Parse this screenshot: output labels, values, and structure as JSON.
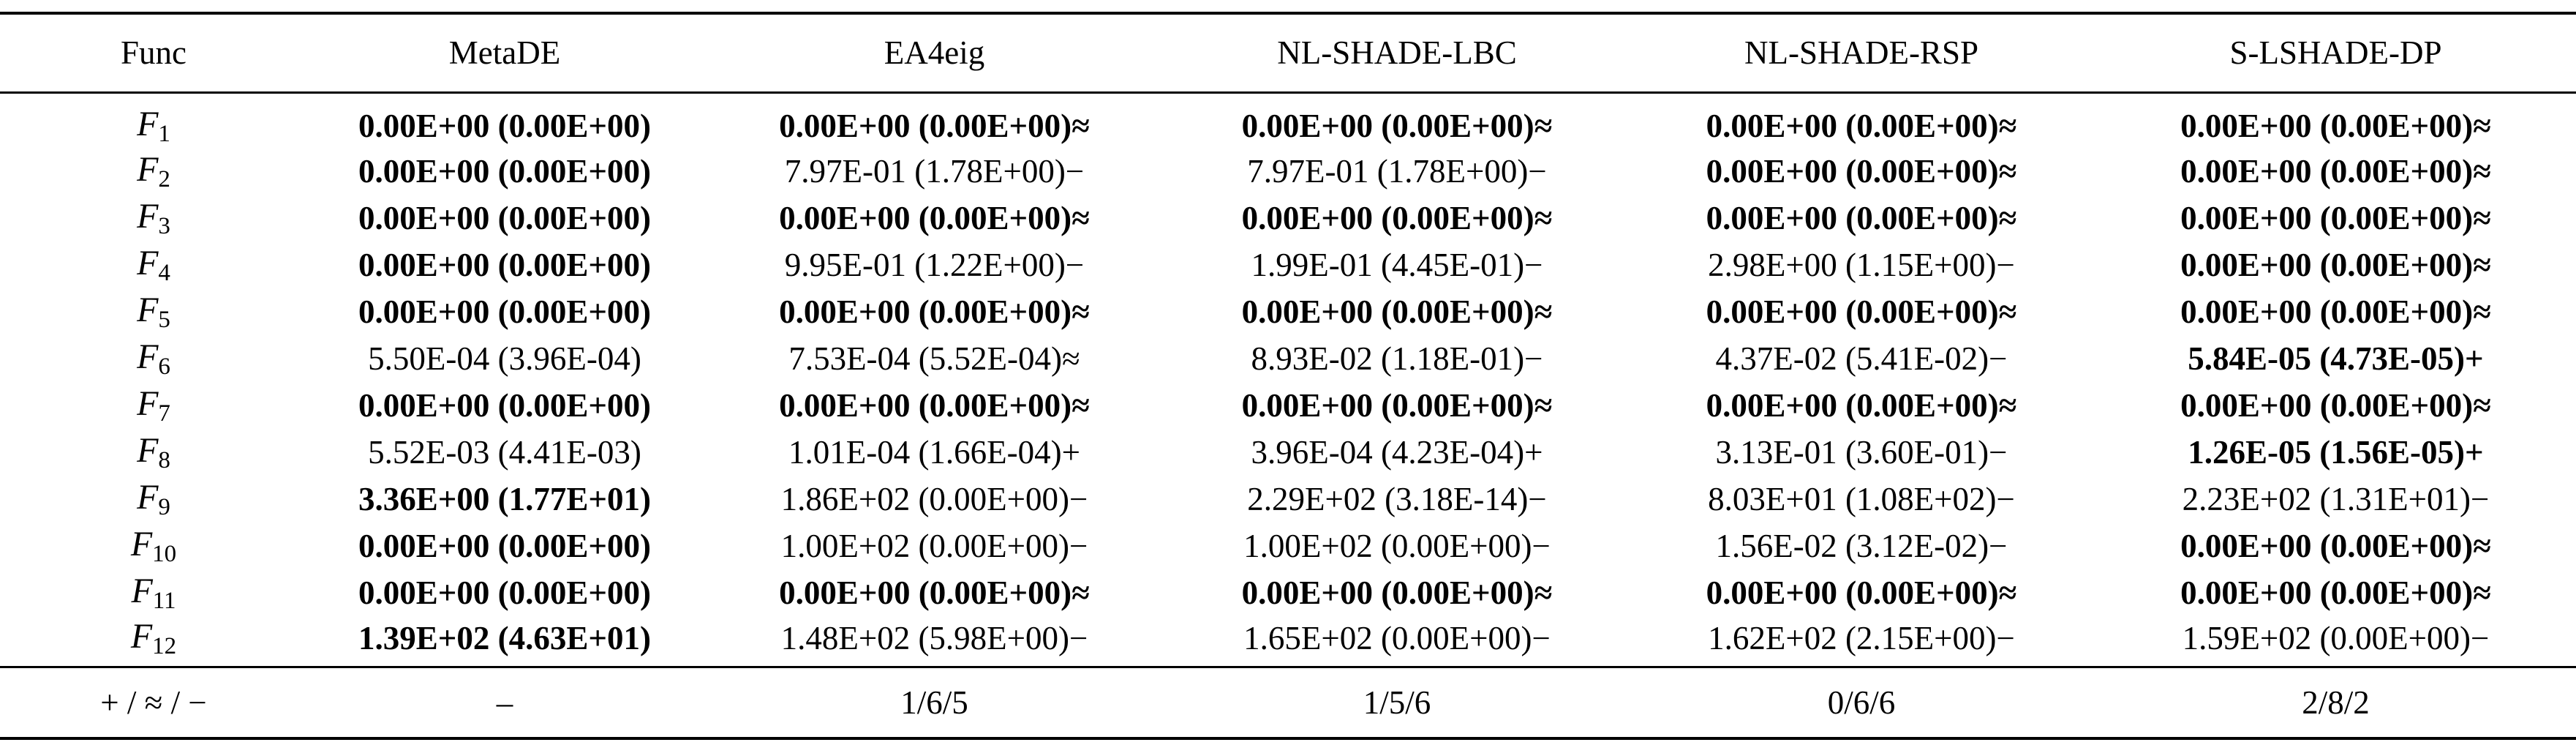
{
  "table": {
    "header": [
      "Func",
      "MetaDE",
      "EA4eig",
      "NL-SHADE-LBC",
      "NL-SHADE-RSP",
      "S-LSHADE-DP"
    ],
    "rows": [
      {
        "func": {
          "name": "F",
          "sub": "1"
        },
        "cells": [
          {
            "text": "0.00E+00 (0.00E+00)",
            "bold": true
          },
          {
            "text": "0.00E+00 (0.00E+00)",
            "bold": true,
            "mark": "≈"
          },
          {
            "text": "0.00E+00 (0.00E+00)",
            "bold": true,
            "mark": "≈"
          },
          {
            "text": "0.00E+00 (0.00E+00)",
            "bold": true,
            "mark": "≈"
          },
          {
            "text": "0.00E+00 (0.00E+00)",
            "bold": true,
            "mark": "≈"
          }
        ]
      },
      {
        "func": {
          "name": "F",
          "sub": "2"
        },
        "cells": [
          {
            "text": "0.00E+00 (0.00E+00)",
            "bold": true
          },
          {
            "text": "7.97E-01 (1.78E+00)",
            "bold": false,
            "mark": "−"
          },
          {
            "text": "7.97E-01 (1.78E+00)",
            "bold": false,
            "mark": "−"
          },
          {
            "text": "0.00E+00 (0.00E+00)",
            "bold": true,
            "mark": "≈"
          },
          {
            "text": "0.00E+00 (0.00E+00)",
            "bold": true,
            "mark": "≈"
          }
        ]
      },
      {
        "func": {
          "name": "F",
          "sub": "3"
        },
        "cells": [
          {
            "text": "0.00E+00 (0.00E+00)",
            "bold": true
          },
          {
            "text": "0.00E+00 (0.00E+00)",
            "bold": true,
            "mark": "≈"
          },
          {
            "text": "0.00E+00 (0.00E+00)",
            "bold": true,
            "mark": "≈"
          },
          {
            "text": "0.00E+00 (0.00E+00)",
            "bold": true,
            "mark": "≈"
          },
          {
            "text": "0.00E+00 (0.00E+00)",
            "bold": true,
            "mark": "≈"
          }
        ]
      },
      {
        "func": {
          "name": "F",
          "sub": "4"
        },
        "cells": [
          {
            "text": "0.00E+00 (0.00E+00)",
            "bold": true
          },
          {
            "text": "9.95E-01 (1.22E+00)",
            "bold": false,
            "mark": "−"
          },
          {
            "text": "1.99E-01 (4.45E-01)",
            "bold": false,
            "mark": "−"
          },
          {
            "text": "2.98E+00 (1.15E+00)",
            "bold": false,
            "mark": "−"
          },
          {
            "text": "0.00E+00 (0.00E+00)",
            "bold": true,
            "mark": "≈"
          }
        ]
      },
      {
        "func": {
          "name": "F",
          "sub": "5"
        },
        "cells": [
          {
            "text": "0.00E+00 (0.00E+00)",
            "bold": true
          },
          {
            "text": "0.00E+00 (0.00E+00)",
            "bold": true,
            "mark": "≈"
          },
          {
            "text": "0.00E+00 (0.00E+00)",
            "bold": true,
            "mark": "≈"
          },
          {
            "text": "0.00E+00 (0.00E+00)",
            "bold": true,
            "mark": "≈"
          },
          {
            "text": "0.00E+00 (0.00E+00)",
            "bold": true,
            "mark": "≈"
          }
        ]
      },
      {
        "func": {
          "name": "F",
          "sub": "6"
        },
        "cells": [
          {
            "text": "5.50E-04 (3.96E-04)",
            "bold": false
          },
          {
            "text": "7.53E-04 (5.52E-04)",
            "bold": false,
            "mark": "≈"
          },
          {
            "text": "8.93E-02 (1.18E-01)",
            "bold": false,
            "mark": "−"
          },
          {
            "text": "4.37E-02 (5.41E-02)",
            "bold": false,
            "mark": "−"
          },
          {
            "text": "5.84E-05 (4.73E-05)",
            "bold": true,
            "mark": "+"
          }
        ]
      },
      {
        "func": {
          "name": "F",
          "sub": "7"
        },
        "cells": [
          {
            "text": "0.00E+00 (0.00E+00)",
            "bold": true
          },
          {
            "text": "0.00E+00 (0.00E+00)",
            "bold": true,
            "mark": "≈"
          },
          {
            "text": "0.00E+00 (0.00E+00)",
            "bold": true,
            "mark": "≈"
          },
          {
            "text": "0.00E+00 (0.00E+00)",
            "bold": true,
            "mark": "≈"
          },
          {
            "text": "0.00E+00 (0.00E+00)",
            "bold": true,
            "mark": "≈"
          }
        ]
      },
      {
        "func": {
          "name": "F",
          "sub": "8"
        },
        "cells": [
          {
            "text": "5.52E-03 (4.41E-03)",
            "bold": false
          },
          {
            "text": "1.01E-04 (1.66E-04)",
            "bold": false,
            "mark": "+"
          },
          {
            "text": "3.96E-04 (4.23E-04)",
            "bold": false,
            "mark": "+"
          },
          {
            "text": "3.13E-01 (3.60E-01)",
            "bold": false,
            "mark": "−"
          },
          {
            "text": "1.26E-05 (1.56E-05)",
            "bold": true,
            "mark": "+"
          }
        ]
      },
      {
        "func": {
          "name": "F",
          "sub": "9"
        },
        "cells": [
          {
            "text": "3.36E+00 (1.77E+01)",
            "bold": true
          },
          {
            "text": "1.86E+02 (0.00E+00)",
            "bold": false,
            "mark": "−"
          },
          {
            "text": "2.29E+02 (3.18E-14)",
            "bold": false,
            "mark": "−"
          },
          {
            "text": "8.03E+01 (1.08E+02)",
            "bold": false,
            "mark": "−"
          },
          {
            "text": "2.23E+02 (1.31E+01)",
            "bold": false,
            "mark": "−"
          }
        ]
      },
      {
        "func": {
          "name": "F",
          "sub": "10"
        },
        "cells": [
          {
            "text": "0.00E+00 (0.00E+00)",
            "bold": true
          },
          {
            "text": "1.00E+02 (0.00E+00)",
            "bold": false,
            "mark": "−"
          },
          {
            "text": "1.00E+02 (0.00E+00)",
            "bold": false,
            "mark": "−"
          },
          {
            "text": "1.56E-02 (3.12E-02)",
            "bold": false,
            "mark": "−"
          },
          {
            "text": "0.00E+00 (0.00E+00)",
            "bold": true,
            "mark": "≈"
          }
        ]
      },
      {
        "func": {
          "name": "F",
          "sub": "11"
        },
        "cells": [
          {
            "text": "0.00E+00 (0.00E+00)",
            "bold": true
          },
          {
            "text": "0.00E+00 (0.00E+00)",
            "bold": true,
            "mark": "≈"
          },
          {
            "text": "0.00E+00 (0.00E+00)",
            "bold": true,
            "mark": "≈"
          },
          {
            "text": "0.00E+00 (0.00E+00)",
            "bold": true,
            "mark": "≈"
          },
          {
            "text": "0.00E+00 (0.00E+00)",
            "bold": true,
            "mark": "≈"
          }
        ]
      },
      {
        "func": {
          "name": "F",
          "sub": "12"
        },
        "cells": [
          {
            "text": "1.39E+02 (4.63E+01)",
            "bold": true
          },
          {
            "text": "1.48E+02 (5.98E+00)",
            "bold": false,
            "mark": "−"
          },
          {
            "text": "1.65E+02 (0.00E+00)",
            "bold": false,
            "mark": "−"
          },
          {
            "text": "1.62E+02 (2.15E+00)",
            "bold": false,
            "mark": "−"
          },
          {
            "text": "1.59E+02 (0.00E+00)",
            "bold": false,
            "mark": "−"
          }
        ]
      }
    ],
    "footer": [
      "+ / ≈ / −",
      "–",
      "1/6/5",
      "1/5/6",
      "0/6/6",
      "2/8/2"
    ]
  }
}
